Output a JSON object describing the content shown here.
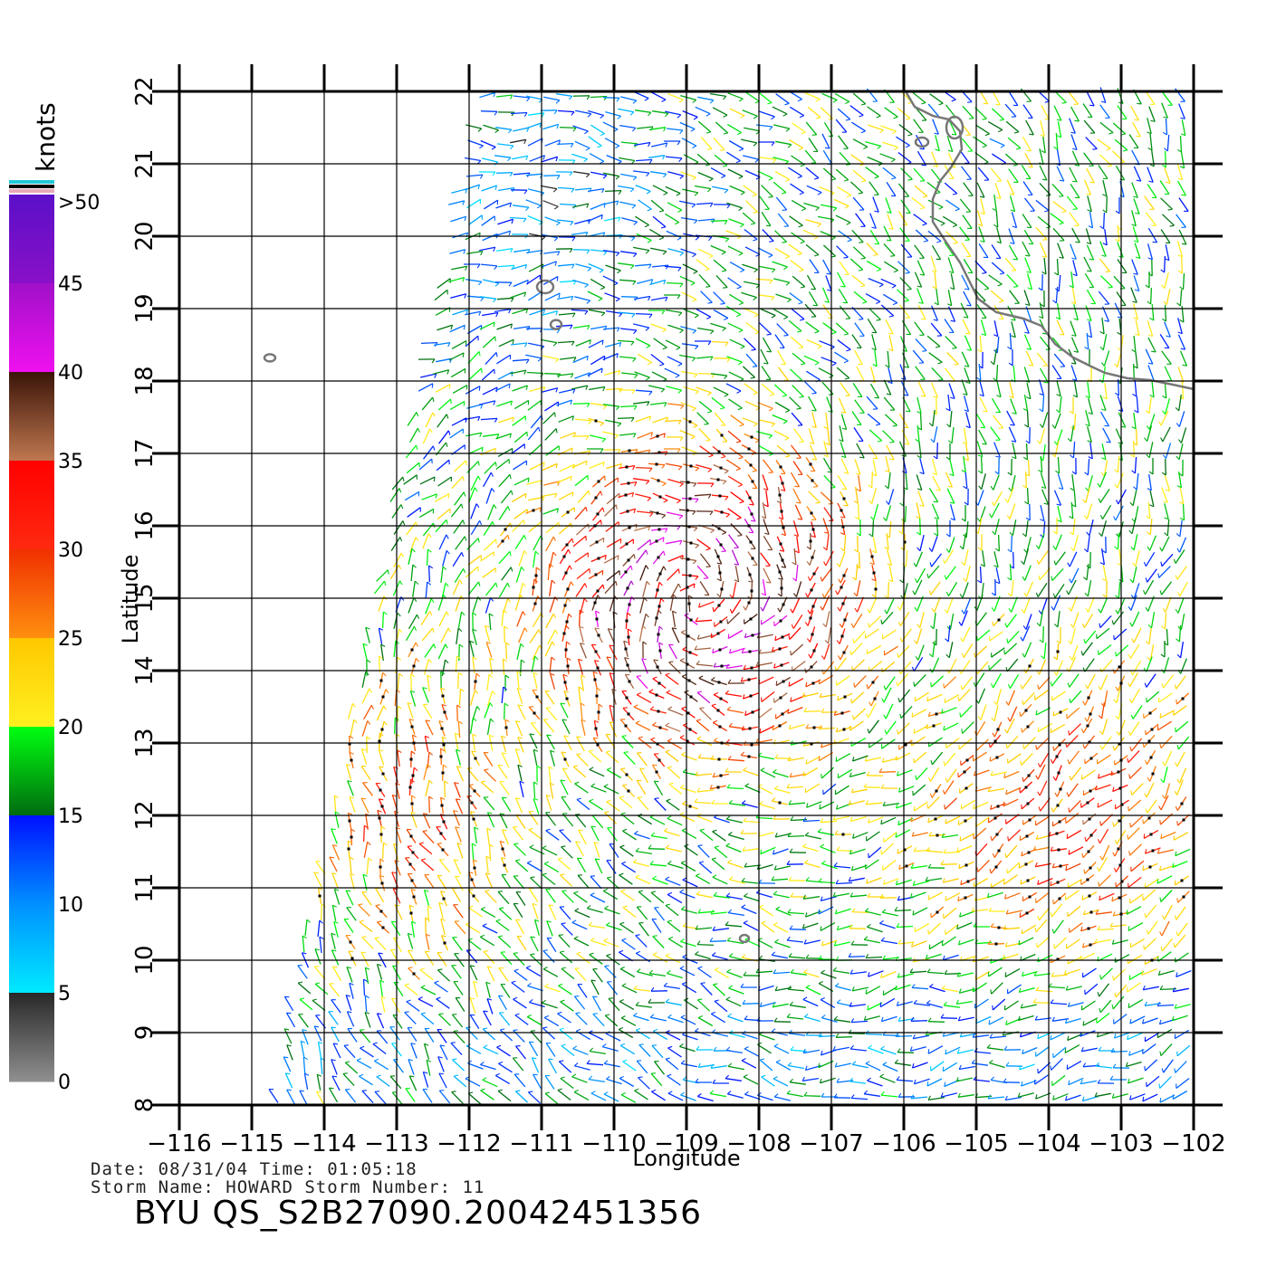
{
  "colorbar": {
    "units": "knots",
    "labels": [
      ">50",
      "45",
      "40",
      "35",
      "30",
      "25",
      "20",
      "15",
      "10",
      "5",
      "0"
    ],
    "bands": [
      {
        "from": 45,
        "to": 50,
        "top": "#5a10c8",
        "bottom": "#8a10c8"
      },
      {
        "from": 40,
        "to": 45,
        "top": "#a010c8",
        "bottom": "#f010f0"
      },
      {
        "from": 35,
        "to": 40,
        "top": "#3a1408",
        "bottom": "#c07850"
      },
      {
        "from": 30,
        "to": 35,
        "top": "#ff0000",
        "bottom": "#ff2a10"
      },
      {
        "from": 25,
        "to": 30,
        "top": "#f03000",
        "bottom": "#ff9010"
      },
      {
        "from": 20,
        "to": 25,
        "top": "#ffc800",
        "bottom": "#fff020"
      },
      {
        "from": 15,
        "to": 20,
        "top": "#00ff10",
        "bottom": "#006a10"
      },
      {
        "from": 10,
        "to": 15,
        "top": "#0010ff",
        "bottom": "#0090ff"
      },
      {
        "from": 5,
        "to": 10,
        "top": "#0090ff",
        "bottom": "#00eaff"
      },
      {
        "from": 0,
        "to": 5,
        "top": "#282828",
        "bottom": "#909090"
      }
    ],
    "cap_colors": [
      "#20c8d8",
      "#000000",
      "#e8a8b8"
    ]
  },
  "chart_data": {
    "type": "scatter",
    "xlabel": "Longitude",
    "ylabel": "Latitude",
    "xlim": [
      -116,
      -102
    ],
    "ylim": [
      8,
      22
    ],
    "x_ticks": [
      "-116",
      "-115",
      "-114",
      "-113",
      "-112",
      "-111",
      "-110",
      "-109",
      "-108",
      "-107",
      "-106",
      "-105",
      "-104",
      "-103",
      "-102"
    ],
    "y_ticks": [
      "8",
      "9",
      "10",
      "11",
      "12",
      "13",
      "14",
      "15",
      "16",
      "17",
      "18",
      "19",
      "20",
      "21",
      "22"
    ],
    "grid": true,
    "swath_corners_lonlat": [
      [
        -111.9,
        22.0
      ],
      [
        -102.0,
        22.0
      ],
      [
        -102.0,
        8.0
      ],
      [
        -114.8,
        8.0
      ]
    ],
    "wind_speed_regions_knots": [
      {
        "name": "storm core",
        "lon": -108.8,
        "lat": 15.0,
        "speed": 41
      },
      {
        "name": "storm ring",
        "lon": -108.8,
        "lat": 15.1,
        "speed": 33
      },
      {
        "name": "south-east band",
        "lon": -103.7,
        "lat": 12.0,
        "speed": 33
      },
      {
        "name": "south-west band",
        "lon": -112.8,
        "lat": 12.0,
        "speed": 31
      },
      {
        "name": "north-west edge",
        "lon": -111.0,
        "lat": 20.5,
        "speed": 12
      }
    ],
    "islands_lonlat": [
      [
        -114.75,
        18.32
      ],
      [
        -110.8,
        18.78
      ],
      [
        -110.95,
        19.3
      ],
      [
        -108.2,
        10.3
      ],
      [
        -105.3,
        21.5
      ],
      [
        -105.75,
        21.3
      ]
    ]
  },
  "info": {
    "date_line": "Date: 08/31/04   Time: 01:05:18",
    "storm_line": "Storm Name: HOWARD   Storm Number: 11",
    "product_id": "BYU  QS_S2B27090.20042451356"
  }
}
